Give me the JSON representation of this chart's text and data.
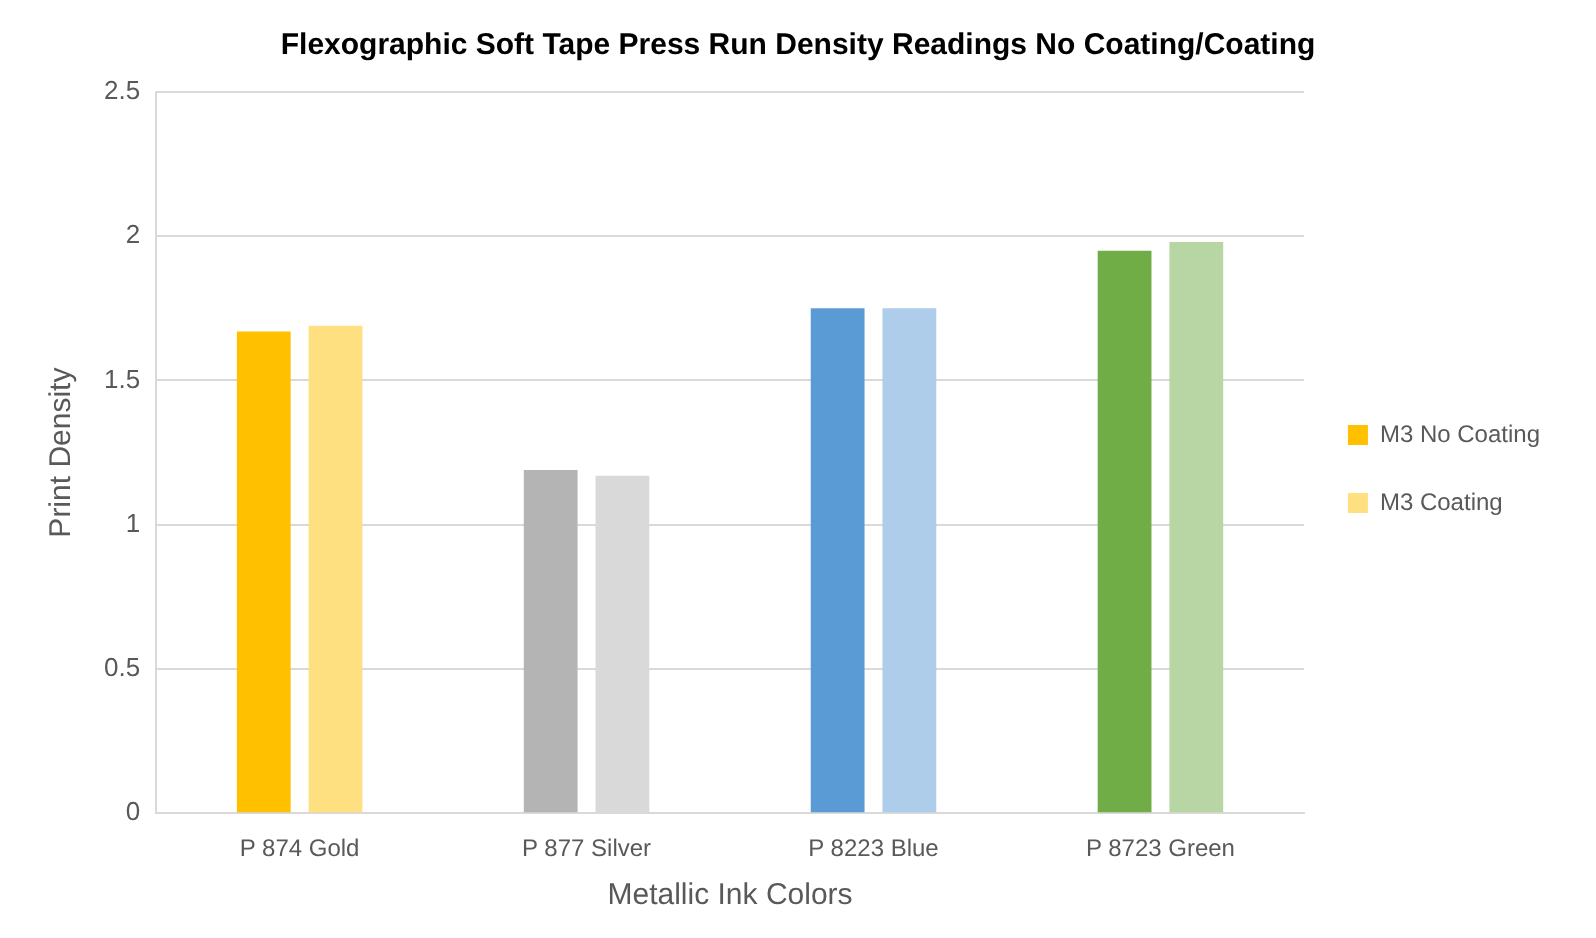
{
  "chart_data": {
    "type": "bar",
    "title": "Flexographic Soft Tape Press Run Density Readings No Coating/Coating",
    "xlabel": "Metallic Ink Colors",
    "ylabel": "Print Density",
    "categories": [
      "P 874 Gold",
      "P 877 Silver",
      "P 8223 Blue",
      "P 8723 Green"
    ],
    "series": [
      {
        "name": "M3 No Coating",
        "colors": [
          "#ffc000",
          "#b4b4b4",
          "#5b9bd5",
          "#70ad47"
        ],
        "values": [
          1.67,
          1.19,
          1.75,
          1.95
        ]
      },
      {
        "name": "M3 Coating",
        "colors": [
          "#ffe080",
          "#d9d9d9",
          "#adcdea",
          "#b8d6a3"
        ],
        "values": [
          1.69,
          1.17,
          1.75,
          1.98
        ]
      }
    ],
    "ylim": [
      0,
      2.5
    ],
    "yticks": [
      0,
      0.5,
      1,
      1.5,
      2,
      2.5
    ],
    "grid": "y",
    "legend": "right"
  }
}
